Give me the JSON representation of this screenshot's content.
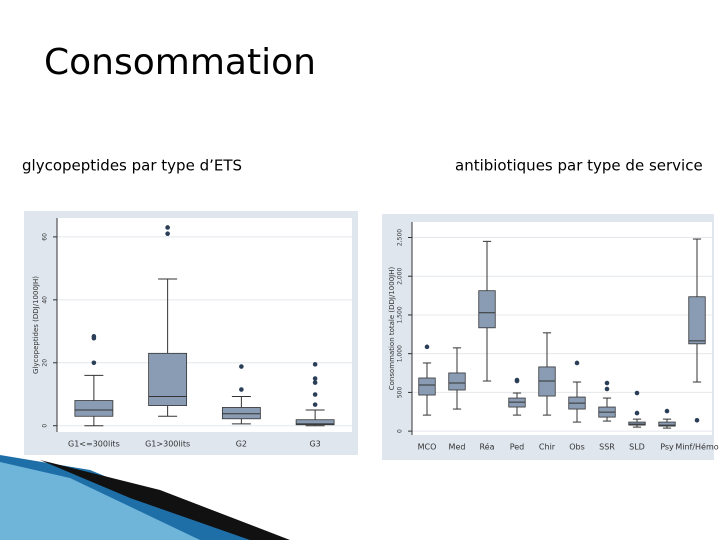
{
  "slide_title": "Consommation",
  "chart_data": [
    {
      "type": "box",
      "title": "glycopeptides par type d’ETS",
      "ylabel": "Glycopeptides (DDJ/1000JH)",
      "categories": [
        "G1<=300lits",
        "G1>300lits",
        "G2",
        "G3"
      ],
      "color": "#8a9cb3",
      "ylim": [
        -2,
        66
      ],
      "yticks": [
        0,
        20,
        40,
        60
      ],
      "grid": true,
      "boxes": [
        {
          "low": 0,
          "q1": 3,
          "median": 5,
          "q3": 8,
          "high": 16,
          "outliers": [
            28.4,
            27.8,
            20
          ]
        },
        {
          "low": 3,
          "q1": 6.4,
          "median": 9.3,
          "q3": 23,
          "high": 46.6,
          "outliers": [
            63,
            61
          ]
        },
        {
          "low": 0.6,
          "q1": 2.2,
          "median": 3.8,
          "q3": 5.8,
          "high": 9.3,
          "outliers": [
            11.5,
            18.8
          ]
        },
        {
          "low": 0,
          "q1": 0.3,
          "median": 0.6,
          "q3": 1.9,
          "high": 5,
          "outliers": [
            6.7,
            9.9,
            13.7,
            15,
            19.5
          ]
        }
      ]
    },
    {
      "type": "box",
      "title": "antibiotiques par type de service",
      "ylabel": "Consommation totale (DDJ/1000JH)",
      "categories": [
        "MCO",
        "Med",
        "Réa",
        "Ped",
        "Chir",
        "Obs",
        "SSR",
        "SLD",
        "Psy",
        "Minf/Hémo"
      ],
      "color": "#8a9cb3",
      "ylim": [
        -50,
        2700
      ],
      "yticks": [
        0,
        500,
        {
          "value": 1000,
          "label": "1,000"
        },
        {
          "value": 1500,
          "label": "1,500"
        },
        {
          "value": 2000,
          "label": "2,000"
        },
        {
          "value": 2500,
          "label": "2,500"
        }
      ],
      "grid": true,
      "boxes": [
        {
          "low": 207,
          "q1": 466,
          "median": 596,
          "q3": 686,
          "high": 880,
          "outliers": [
            1088
          ]
        },
        {
          "low": 285,
          "q1": 531,
          "median": 621,
          "q3": 751,
          "high": 1075,
          "outliers": []
        },
        {
          "low": 647,
          "q1": 1334,
          "median": 1528,
          "q3": 1813,
          "high": 2450,
          "outliers": []
        },
        {
          "low": 207,
          "q1": 311,
          "median": 375,
          "q3": 427,
          "high": 492,
          "outliers": [
            647,
            660
          ]
        },
        {
          "low": 207,
          "q1": 453,
          "median": 647,
          "q3": 829,
          "high": 1269,
          "outliers": []
        },
        {
          "low": 117,
          "q1": 285,
          "median": 362,
          "q3": 440,
          "high": 634,
          "outliers": [
            880
          ]
        },
        {
          "low": 130,
          "q1": 181,
          "median": 246,
          "q3": 311,
          "high": 427,
          "outliers": [
            544,
            621
          ]
        },
        {
          "low": 52,
          "q1": 78,
          "median": 91,
          "q3": 117,
          "high": 155,
          "outliers": [
            233,
            492
          ]
        },
        {
          "low": 39,
          "q1": 65,
          "median": 78,
          "q3": 117,
          "high": 155,
          "outliers": [
            259
          ]
        },
        {
          "low": 634,
          "q1": 1127,
          "median": 1165,
          "q3": 1735,
          "high": 2480,
          "outliers": [
            140
          ]
        }
      ]
    }
  ]
}
